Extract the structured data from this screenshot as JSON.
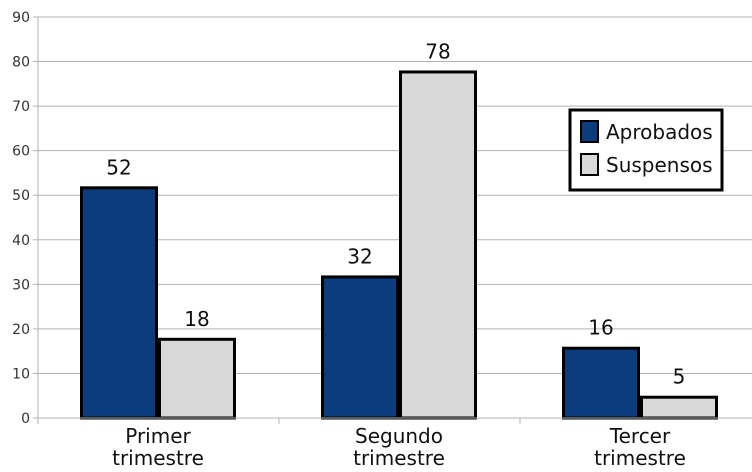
{
  "chart_data": {
    "type": "bar",
    "categories": [
      [
        "Primer",
        "trimestre"
      ],
      [
        "Segundo",
        "trimestre"
      ],
      [
        "Tercer",
        "trimestre"
      ]
    ],
    "series": [
      {
        "name": "Aprobados",
        "values": [
          52,
          32,
          16
        ],
        "labels": [
          "52",
          "32",
          "16"
        ],
        "color": "#0b3d7e"
      },
      {
        "name": "Suspensos",
        "values": [
          18,
          78,
          5
        ],
        "labels": [
          "18",
          "78",
          "5"
        ],
        "color": "#d8d8d8"
      }
    ],
    "ylim": [
      0,
      90
    ],
    "yticks": [
      0,
      10,
      20,
      30,
      40,
      50,
      60,
      70,
      80,
      90
    ],
    "ytick_labels": [
      "0",
      "10",
      "20",
      "30",
      "40",
      "50",
      "60",
      "70",
      "80",
      "90"
    ],
    "grid": true,
    "legend_position": "right",
    "title": "",
    "xlabel": "",
    "ylabel": ""
  }
}
